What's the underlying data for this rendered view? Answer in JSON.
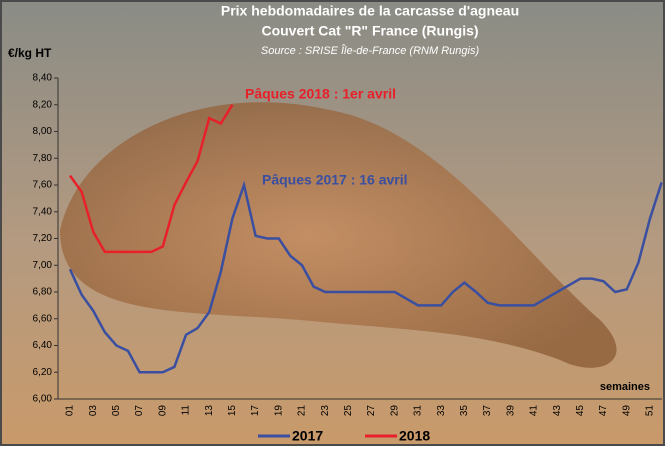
{
  "chart_data": {
    "type": "line",
    "title": "Prix hebdomadaires de la carcasse d'agneau",
    "subtitle": "Couvert Cat \"R\" France (Rungis)",
    "source": "Source : SRISE Île-de-France (RNM Rungis)",
    "y_label": "€/kg HT",
    "x_label": "semaines",
    "annotations": [
      "Pâques 2018 : 1er avril",
      "Pâques 2017 : 16 avril"
    ],
    "categories": [
      "01",
      null,
      "03",
      null,
      "05",
      null,
      "07",
      null,
      "09",
      null,
      "11",
      null,
      "13",
      null,
      "15",
      null,
      "17",
      null,
      "19",
      null,
      "21",
      null,
      "23",
      null,
      "25",
      null,
      "27",
      null,
      "29",
      null,
      "31",
      null,
      "33",
      null,
      "35",
      null,
      "37",
      null,
      "39",
      null,
      "41",
      null,
      "43",
      null,
      "45",
      null,
      "47",
      null,
      "49",
      null,
      "51",
      null
    ],
    "series": [
      {
        "name": "2017",
        "color": "#3a4fa0",
        "values": [
          6.97,
          6.78,
          6.66,
          6.5,
          6.4,
          6.36,
          6.2,
          6.2,
          6.2,
          6.24,
          6.48,
          6.53,
          6.65,
          6.95,
          7.35,
          7.6,
          7.22,
          7.2,
          7.2,
          7.07,
          7.0,
          6.84,
          6.8,
          6.8,
          6.8,
          6.8,
          6.8,
          6.8,
          6.8,
          6.75,
          6.7,
          6.7,
          6.7,
          6.8,
          6.87,
          6.8,
          6.72,
          6.7,
          6.7,
          6.7,
          6.7,
          6.75,
          6.8,
          6.85,
          6.9,
          6.9,
          6.88,
          6.8,
          6.82,
          7.02,
          7.35,
          7.62
        ]
      },
      {
        "name": "2018",
        "color": "#e8202a",
        "values": [
          7.67,
          7.55,
          7.25,
          7.1,
          7.1,
          7.1,
          7.1,
          7.1,
          7.14,
          7.45,
          7.62,
          7.78,
          8.1,
          8.06,
          8.2,
          null,
          null,
          null,
          null,
          null,
          null,
          null,
          null,
          null,
          null,
          null,
          null,
          null,
          null,
          null,
          null,
          null,
          null,
          null,
          null,
          null,
          null,
          null,
          null,
          null,
          null,
          null,
          null,
          null,
          null,
          null,
          null,
          null,
          null,
          null,
          null,
          null
        ]
      }
    ],
    "ylim": [
      6.0,
      8.4
    ],
    "yticks": [
      {
        "value": 6.0,
        "label": "6,00"
      },
      {
        "value": 6.2,
        "label": "6,20"
      },
      {
        "value": 6.4,
        "label": "6,40"
      },
      {
        "value": 6.6,
        "label": "6,60"
      },
      {
        "value": 6.8,
        "label": "6,80"
      },
      {
        "value": 7.0,
        "label": "7,00"
      },
      {
        "value": 7.2,
        "label": "7,20"
      },
      {
        "value": 7.4,
        "label": "7,40"
      },
      {
        "value": 7.6,
        "label": "7,60"
      },
      {
        "value": 7.8,
        "label": "7,80"
      },
      {
        "value": 8.0,
        "label": "8,00"
      },
      {
        "value": 8.2,
        "label": "8,20"
      },
      {
        "value": 8.4,
        "label": "8,40"
      }
    ]
  }
}
